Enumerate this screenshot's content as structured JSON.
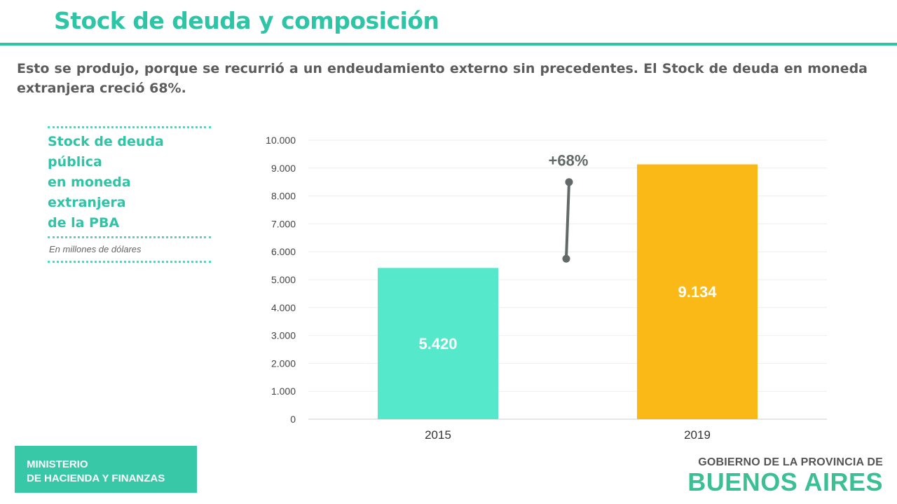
{
  "page": {
    "title": "Stock de deuda y composición",
    "intro": "Esto se produjo, porque se recurrió a un endeudamiento externo sin precedentes. El Stock de deuda en moneda extranjera creció 68%.",
    "side_title_lines": [
      "Stock de deuda pública",
      "en moneda extranjera",
      "de la PBA"
    ],
    "side_note": "En millones de dólares"
  },
  "footer": {
    "ministry_line1": "MINISTERIO",
    "ministry_line2": "DE HACIENDA Y FINANZAS",
    "logo_top": "GOBIERNO DE LA PROVINCIA DE",
    "logo_bottom": "BUENOS AIRES"
  },
  "chart_data": {
    "type": "bar",
    "title": "Stock de deuda pública en moneda extranjera de la PBA",
    "ylabel": "En millones de dólares",
    "categories": [
      "2015",
      "2019"
    ],
    "values": [
      5420,
      9134
    ],
    "value_labels": [
      "5.420",
      "9.134"
    ],
    "bar_colors": [
      "#55e8cb",
      "#fbb917"
    ],
    "ylim": [
      0,
      10000
    ],
    "yticks": [
      0,
      1000,
      2000,
      3000,
      4000,
      5000,
      6000,
      7000,
      8000,
      9000,
      10000
    ],
    "ytick_labels": [
      "0",
      "1.000",
      "2.000",
      "3.000",
      "4.000",
      "5.000",
      "6.000",
      "7.000",
      "8.000",
      "9.000",
      "10.000"
    ],
    "grid": true,
    "annotation": {
      "label": "+68%",
      "from_value": 5750,
      "to_value": 8500
    }
  }
}
